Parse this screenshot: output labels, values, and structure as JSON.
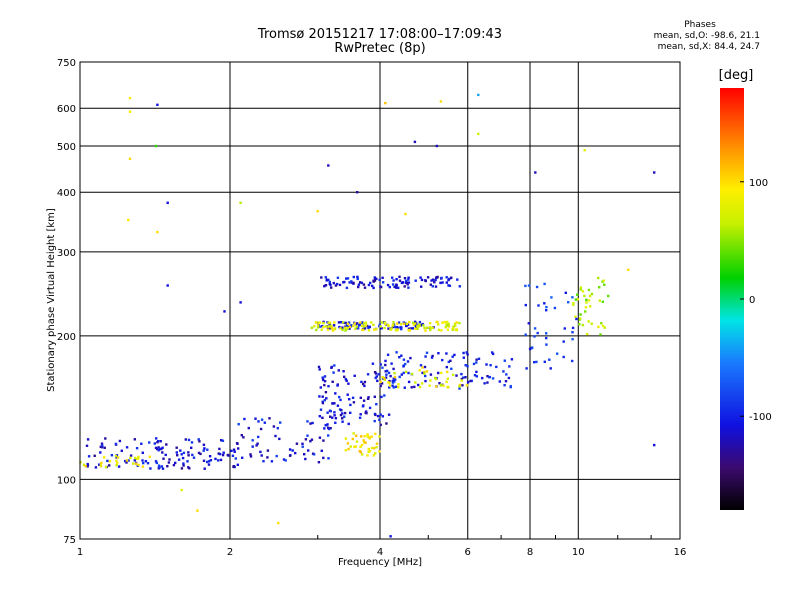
{
  "header": {
    "title_line1": "Tromsø 20151217 17:08:00–17:09:43",
    "title_line2": "RwPretec (8p)"
  },
  "stats": {
    "heading": "Phases",
    "line_o": "mean, sd,O: -98.6, 21.1",
    "line_x": "mean, sd,X: 84.4, 24.7"
  },
  "colorbar": {
    "unit": "[deg]",
    "ticks": [
      {
        "value": 100,
        "label": "100"
      },
      {
        "value": 0,
        "label": "0"
      },
      {
        "value": -100,
        "label": "-100"
      }
    ],
    "range": [
      -180,
      180
    ]
  },
  "chart_data": {
    "type": "scatter",
    "title": "Tromsø 20151217 17:08:00–17:09:43",
    "subtitle": "RwPretec (8p)",
    "xlabel": "Frequency [MHz]",
    "ylabel": "Stationary phase Virtual Height [km]",
    "xscale": "log",
    "yscale": "log",
    "xlim": [
      1,
      16
    ],
    "ylim": [
      75,
      750
    ],
    "x_ticks": [
      1,
      2,
      4,
      6,
      8,
      10,
      16
    ],
    "y_ticks": [
      75,
      100,
      200,
      300,
      400,
      500,
      600,
      750
    ],
    "grid": true,
    "color_encoding": "phase [deg]",
    "clusters": [
      {
        "trace": "low E-region sporadic trace",
        "x_range": [
          1.0,
          2.1
        ],
        "y_range": [
          105,
          122
        ],
        "phase": -110,
        "count": 130
      },
      {
        "trace": "low trace yellow",
        "x_range": [
          1.0,
          1.4
        ],
        "y_range": [
          106,
          112
        ],
        "phase": 90,
        "count": 25
      },
      {
        "trace": "rising trace",
        "x_range": [
          2.0,
          3.2
        ],
        "y_range": [
          108,
          135
        ],
        "phase": -105,
        "count": 70
      },
      {
        "trace": "lower F1 cusp",
        "x_range": [
          3.0,
          4.2
        ],
        "y_range": [
          130,
          175
        ],
        "phase": -110,
        "count": 110
      },
      {
        "trace": "yellow group",
        "x_range": [
          3.4,
          4.0
        ],
        "y_range": [
          112,
          125
        ],
        "phase": 95,
        "count": 40
      },
      {
        "trace": "F2 trace blue",
        "x_range": [
          3.0,
          5.2
        ],
        "y_range": [
          206,
          214
        ],
        "phase": -105,
        "count": 90
      },
      {
        "trace": "F2 trace yellow",
        "x_range": [
          2.9,
          5.8
        ],
        "y_range": [
          205,
          214
        ],
        "phase": 80,
        "count": 120
      },
      {
        "trace": "upper trace",
        "x_range": [
          3.0,
          5.8
        ],
        "y_range": [
          252,
          266
        ],
        "phase": -110,
        "count": 110
      },
      {
        "trace": "mid trace",
        "x_range": [
          4.0,
          7.5
        ],
        "y_range": [
          155,
          185
        ],
        "phase": -100,
        "count": 110
      },
      {
        "trace": "mid trace yellow",
        "x_range": [
          4.0,
          6.0
        ],
        "y_range": [
          155,
          172
        ],
        "phase": 85,
        "count": 40
      },
      {
        "trace": "high frequency trace",
        "x_range": [
          9.7,
          11.5
        ],
        "y_range": [
          200,
          265
        ],
        "phase": 60,
        "count": 40
      },
      {
        "trace": "high frequency trace blue",
        "x_range": [
          7.8,
          10.0
        ],
        "y_range": [
          170,
          260
        ],
        "phase": -90,
        "count": 40
      }
    ],
    "outliers": [
      {
        "x": 1.26,
        "y": 630,
        "phase": 95
      },
      {
        "x": 1.26,
        "y": 590,
        "phase": 90
      },
      {
        "x": 1.43,
        "y": 610,
        "phase": -110
      },
      {
        "x": 1.42,
        "y": 500,
        "phase": 30
      },
      {
        "x": 1.26,
        "y": 470,
        "phase": 100
      },
      {
        "x": 1.5,
        "y": 380,
        "phase": -110
      },
      {
        "x": 1.25,
        "y": 350,
        "phase": 95
      },
      {
        "x": 1.43,
        "y": 330,
        "phase": 100
      },
      {
        "x": 3.15,
        "y": 455,
        "phase": -120
      },
      {
        "x": 3.6,
        "y": 400,
        "phase": -130
      },
      {
        "x": 4.1,
        "y": 615,
        "phase": 110
      },
      {
        "x": 4.7,
        "y": 510,
        "phase": -120
      },
      {
        "x": 5.2,
        "y": 500,
        "phase": -120
      },
      {
        "x": 5.3,
        "y": 620,
        "phase": 100
      },
      {
        "x": 6.3,
        "y": 640,
        "phase": -40
      },
      {
        "x": 6.3,
        "y": 530,
        "phase": 70
      },
      {
        "x": 8.2,
        "y": 440,
        "phase": -120
      },
      {
        "x": 10.3,
        "y": 490,
        "phase": 80
      },
      {
        "x": 14.2,
        "y": 440,
        "phase": -120
      },
      {
        "x": 14.2,
        "y": 118,
        "phase": -110
      },
      {
        "x": 2.1,
        "y": 235,
        "phase": -110
      },
      {
        "x": 1.95,
        "y": 225,
        "phase": -110
      },
      {
        "x": 2.5,
        "y": 81,
        "phase": 100
      },
      {
        "x": 1.72,
        "y": 86,
        "phase": 100
      },
      {
        "x": 1.6,
        "y": 95,
        "phase": 80
      },
      {
        "x": 4.2,
        "y": 76,
        "phase": -110
      },
      {
        "x": 1.5,
        "y": 255,
        "phase": -110
      },
      {
        "x": 3.0,
        "y": 365,
        "phase": 100
      },
      {
        "x": 4.5,
        "y": 360,
        "phase": 100
      },
      {
        "x": 2.1,
        "y": 380,
        "phase": 60
      },
      {
        "x": 12.6,
        "y": 275,
        "phase": 100
      }
    ]
  }
}
